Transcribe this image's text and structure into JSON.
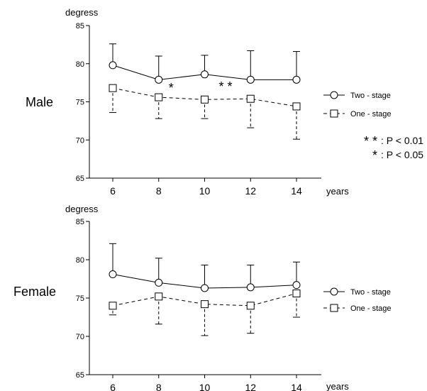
{
  "chart_data": [
    {
      "type": "line",
      "panel_label": "Male",
      "ylabel": "degress",
      "xlabel": "years",
      "ylim": [
        65,
        85
      ],
      "yticks": [
        65,
        70,
        75,
        80,
        85
      ],
      "x": [
        6,
        8,
        10,
        12,
        14
      ],
      "series": [
        {
          "name": "Two - stage",
          "line_style": "solid",
          "marker": "circle",
          "values": [
            79.8,
            77.9,
            78.6,
            77.9,
            77.9
          ],
          "error": [
            2.8,
            3.1,
            2.5,
            3.8,
            3.7
          ]
        },
        {
          "name": "One - stage",
          "line_style": "dashed",
          "marker": "square",
          "values": [
            76.8,
            75.6,
            75.3,
            75.4,
            74.4
          ],
          "error": [
            3.2,
            2.8,
            2.5,
            3.8,
            4.3
          ]
        }
      ],
      "annotations": [
        {
          "text": "*",
          "x": 8
        },
        {
          "text": "* *",
          "x": 10
        }
      ],
      "significance_key": [
        {
          "symbol": "* *",
          "label": ": P < 0.01"
        },
        {
          "symbol": "*",
          "label": ": P < 0.05"
        }
      ]
    },
    {
      "type": "line",
      "panel_label": "Female",
      "ylabel": "degress",
      "xlabel": "years",
      "ylim": [
        65,
        85
      ],
      "yticks": [
        65,
        70,
        75,
        80,
        85
      ],
      "x": [
        6,
        8,
        10,
        12,
        14
      ],
      "series": [
        {
          "name": "Two - stage",
          "line_style": "solid",
          "marker": "circle",
          "values": [
            78.1,
            77.0,
            76.3,
            76.4,
            76.7
          ],
          "error": [
            4.0,
            3.2,
            3.0,
            2.9,
            3.0
          ]
        },
        {
          "name": "One - stage",
          "line_style": "dashed",
          "marker": "square",
          "values": [
            74.0,
            75.2,
            74.2,
            74.0,
            75.6
          ],
          "error": [
            1.2,
            3.6,
            4.1,
            3.6,
            3.1
          ]
        }
      ],
      "annotations": []
    }
  ]
}
